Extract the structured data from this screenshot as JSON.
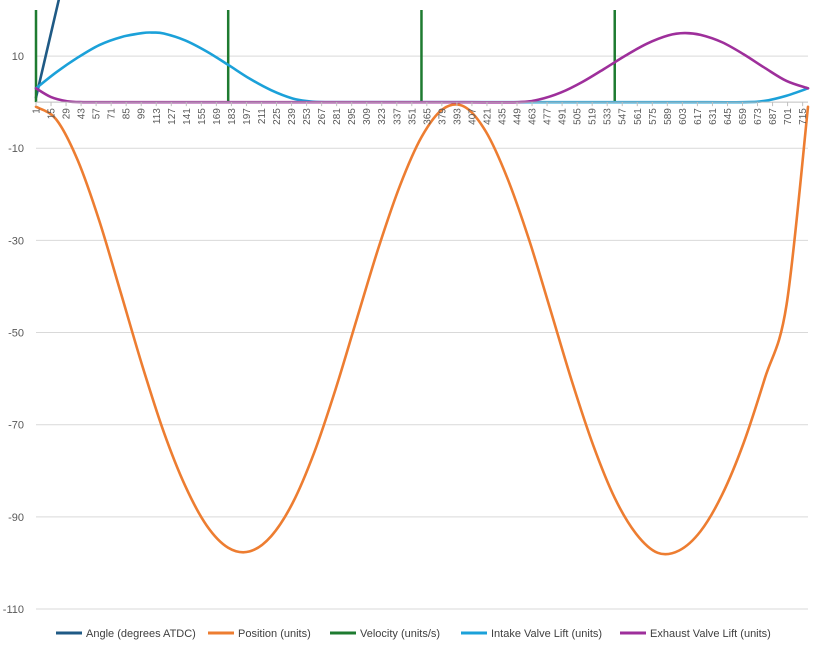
{
  "chart_data": {
    "type": "line",
    "title": "",
    "xlabel": "",
    "ylabel": "",
    "ylim": [
      -110,
      20
    ],
    "yticks": [
      10,
      -10,
      -30,
      -50,
      -70,
      -90,
      -110
    ],
    "xlim": [
      1,
      720
    ],
    "xticks": [
      1,
      15,
      29,
      43,
      57,
      71,
      85,
      99,
      113,
      127,
      141,
      155,
      169,
      183,
      197,
      211,
      225,
      239,
      253,
      267,
      281,
      295,
      309,
      323,
      337,
      351,
      365,
      379,
      393,
      407,
      421,
      435,
      449,
      463,
      477,
      491,
      505,
      519,
      533,
      547,
      561,
      575,
      589,
      603,
      617,
      631,
      645,
      659,
      673,
      687,
      701,
      715
    ],
    "grid": "horizontal",
    "legend_position": "bottom",
    "series": [
      {
        "name": "Angle (degrees ATDC)",
        "color": "#1f5a85",
        "x": [
          1,
          5,
          10,
          15,
          20,
          24
        ],
        "y": [
          1,
          5,
          10,
          15,
          20,
          24
        ]
      },
      {
        "name": "Position (units)",
        "color": "#ed7d31",
        "x": [
          1,
          20,
          40,
          60,
          80,
          100,
          120,
          140,
          160,
          180,
          200,
          220,
          240,
          260,
          280,
          300,
          320,
          340,
          360,
          380,
          400,
          420,
          440,
          460,
          480,
          500,
          520,
          540,
          560,
          580,
          600,
          620,
          640,
          660,
          680,
          700,
          720
        ],
        "y": [
          -1,
          -3.8,
          -12.7,
          -25.8,
          -41.4,
          -57.2,
          -71.6,
          -83.3,
          -91.9,
          -96.7,
          -97.5,
          -94.2,
          -87.0,
          -76.1,
          -62.3,
          -46.9,
          -31.6,
          -18.1,
          -7.6,
          -1.5,
          -1,
          -6.4,
          -16.5,
          -29.7,
          -45.0,
          -60.5,
          -74.5,
          -85.9,
          -93.7,
          -97.8,
          -97.3,
          -93.1,
          -85.2,
          -74.0,
          -59.8,
          -44.0,
          -1
        ]
      },
      {
        "name": "Velocity (units/s)",
        "color": "#1e7b30",
        "spikes_at_x": [
          1,
          180,
          360,
          540
        ],
        "spike_range": [
          0,
          20
        ]
      },
      {
        "name": "Intake Valve Lift (units)",
        "color": "#1ba1d9",
        "x": [
          1,
          20,
          40,
          60,
          80,
          100,
          110,
          120,
          140,
          160,
          180,
          200,
          220,
          240,
          255,
          270,
          300,
          400,
          500,
          600,
          660,
          680,
          700,
          720
        ],
        "y": [
          3,
          6.5,
          9.7,
          12.4,
          14.1,
          15,
          15.1,
          14.9,
          13.4,
          11.0,
          8.1,
          5.1,
          2.6,
          0.8,
          0.2,
          0,
          0,
          0,
          0,
          0,
          0,
          0.3,
          1.4,
          3
        ]
      },
      {
        "name": "Exhaust Valve Lift (units)",
        "color": "#9e2f9b",
        "x": [
          1,
          15,
          30,
          45,
          60,
          100,
          200,
          300,
          400,
          450,
          470,
          490,
          510,
          530,
          550,
          570,
          590,
          605,
          620,
          640,
          660,
          680,
          700,
          720
        ],
        "y": [
          3,
          1.1,
          0.2,
          0,
          0,
          0,
          0,
          0,
          0,
          0,
          0.6,
          2.1,
          4.4,
          7.2,
          10.1,
          12.7,
          14.5,
          15.0,
          14.6,
          13.0,
          10.4,
          7.4,
          4.6,
          3
        ]
      }
    ]
  }
}
